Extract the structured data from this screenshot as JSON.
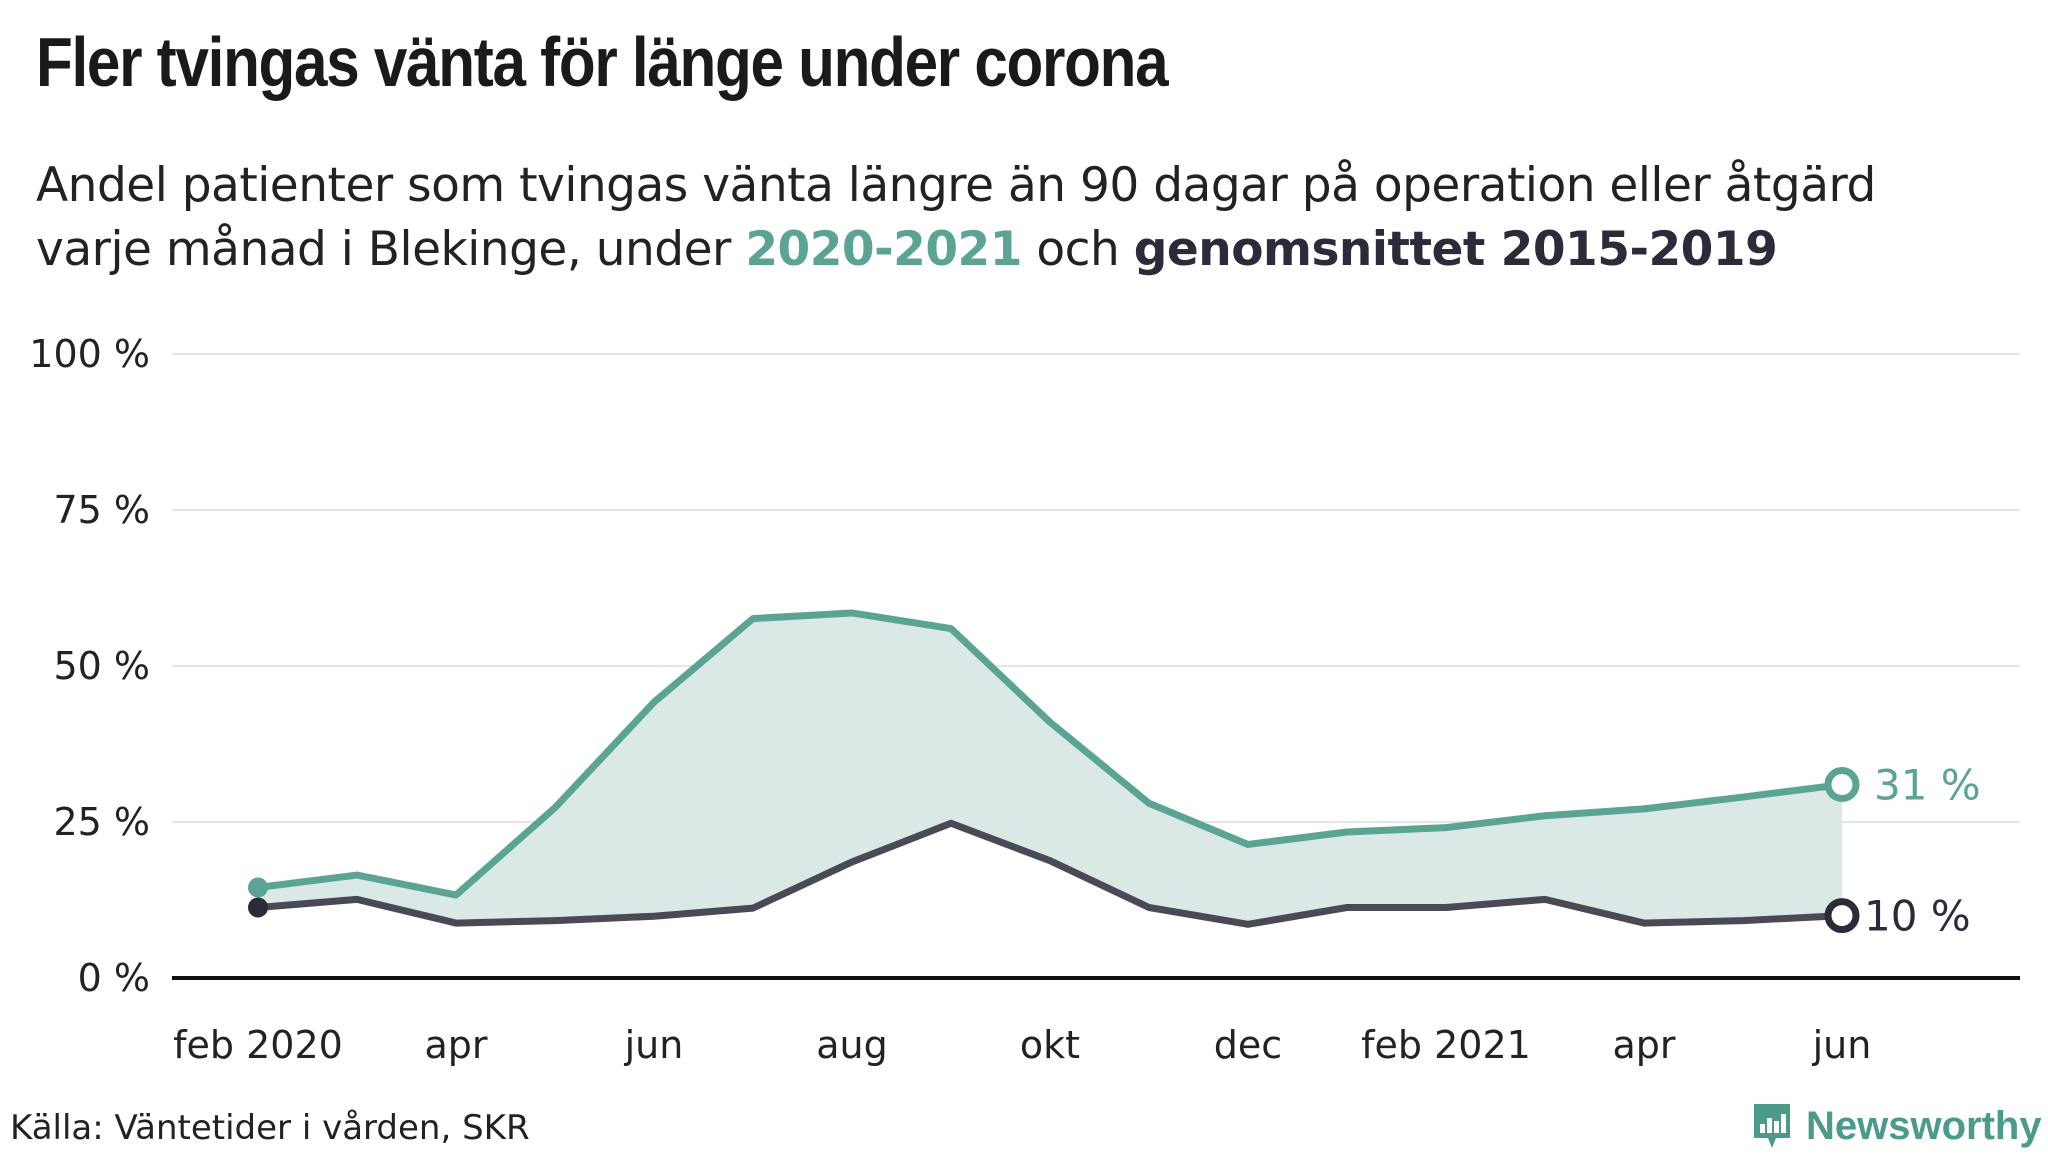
{
  "title": "Fler tvingas vänta för länge under corona",
  "subtitle": {
    "line1": "Andel patienter som tvingas vänta längre än 90 dagar på operation eller åtgärd",
    "line2_prefix": "varje månad i Blekinge, under ",
    "highlight1": "2020-2021",
    "middle": " och ",
    "highlight2": "genomsnittet 2015-2019"
  },
  "source": "Källa: Väntetider i vården, SKR",
  "brand": "Newsworthy",
  "colors": {
    "teal": "#5ba393",
    "teal_fill": "#dae9e6",
    "dark": "#4a4a56",
    "dark_marker": "#2b2b3a",
    "grid": "#e6e6e6",
    "axis": "#111111"
  },
  "chart_data": {
    "type": "line",
    "x_tick_labels": [
      "feb 2020",
      "apr",
      "jun",
      "aug",
      "okt",
      "dec",
      "feb 2021",
      "apr",
      "jun"
    ],
    "x_tick_month_index": [
      1,
      3,
      5,
      7,
      9,
      11,
      13,
      15,
      17
    ],
    "y_tick_labels": [
      "0 %",
      "25 %",
      "50 %",
      "75 %",
      "100 %"
    ],
    "y_tick_values": [
      0,
      25,
      50,
      75,
      100
    ],
    "ylim": [
      0,
      100
    ],
    "x_month_range": [
      0,
      17
    ],
    "series": [
      {
        "months": [
          "2020-01",
          "2020-02",
          "2020-03",
          "2020-04",
          "2020-05",
          "2020-06",
          "2020-07",
          "2020-08",
          "2020-09",
          "2020-10",
          "2020-11",
          "2020-12",
          "2021-01",
          "2021-02",
          "2021-03",
          "2021-04",
          "2021-05"
        ],
        "values": [
          14.5,
          16.5,
          13.3,
          27.3,
          44.2,
          57.6,
          58.5,
          56.0,
          41.0,
          28.0,
          21.4,
          23.4,
          24.1,
          26.0,
          27.1,
          29.0,
          31.0
        ],
        "end_label": "31 %",
        "color": "#5ba393"
      },
      {
        "months": [
          "2020-01",
          "2020-02",
          "2020-03",
          "2020-04",
          "2020-05",
          "2020-06",
          "2020-07",
          "2020-08",
          "2020-09",
          "2020-10",
          "2020-11",
          "2020-12",
          "2021-01",
          "2021-02",
          "2021-03",
          "2021-04",
          "2021-05"
        ],
        "values": [
          11.3,
          12.6,
          8.8,
          9.2,
          9.9,
          11.2,
          18.6,
          24.8,
          18.8,
          11.3,
          8.6,
          11.3,
          11.3,
          12.6,
          8.8,
          9.2,
          10.0
        ],
        "end_label": "10 %",
        "color": "#4a4a56"
      }
    ]
  }
}
